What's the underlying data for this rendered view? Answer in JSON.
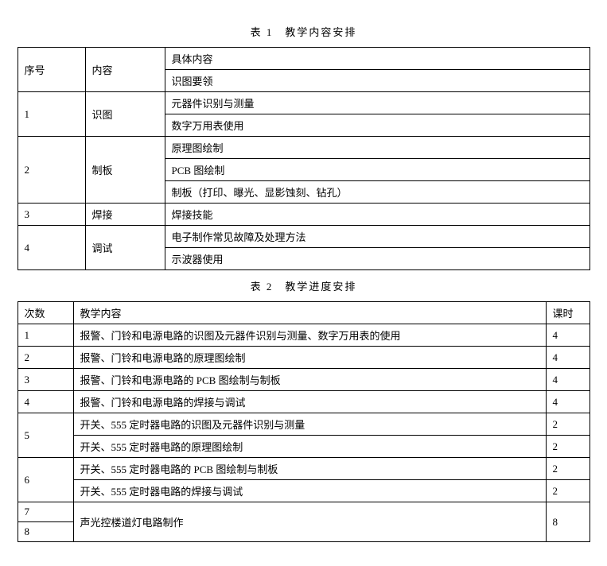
{
  "table1": {
    "caption": "表 1　教学内容安排",
    "headers": {
      "col1": "序号",
      "col2": "内容",
      "col3": "具体内容"
    },
    "rows": [
      {
        "seq": "1",
        "topic": "识图",
        "details": [
          "识图要领",
          "元器件识别与测量",
          "数字万用表使用"
        ]
      },
      {
        "seq": "2",
        "topic": "制板",
        "details": [
          "原理图绘制",
          "PCB 图绘制",
          "制板（打印、曝光、显影蚀刻、钻孔）"
        ]
      },
      {
        "seq": "3",
        "topic": "焊接",
        "details": [
          "焊接技能"
        ]
      },
      {
        "seq": "4",
        "topic": "调试",
        "details": [
          "电子制作常见故障及处理方法",
          "示波器使用"
        ]
      }
    ]
  },
  "table2": {
    "caption": "表 2　教学进度安排",
    "headers": {
      "col1": "次数",
      "col2": "教学内容",
      "col3": "课时"
    },
    "rows": [
      {
        "n": "1",
        "items": [
          {
            "content": "报警、门铃和电源电路的识图及元器件识别与测量、数字万用表的使用",
            "hours": "4"
          }
        ]
      },
      {
        "n": "2",
        "items": [
          {
            "content": "报警、门铃和电源电路的原理图绘制",
            "hours": "4"
          }
        ]
      },
      {
        "n": "3",
        "items": [
          {
            "content": "报警、门铃和电源电路的 PCB 图绘制与制板",
            "hours": "4"
          }
        ]
      },
      {
        "n": "4",
        "items": [
          {
            "content": "报警、门铃和电源电路的焊接与调试",
            "hours": "4"
          }
        ]
      },
      {
        "n": "5",
        "items": [
          {
            "content": "开关、555 定时器电路的识图及元器件识别与测量",
            "hours": "2"
          },
          {
            "content": "开关、555 定时器电路的原理图绘制",
            "hours": "2"
          }
        ]
      },
      {
        "n": "6",
        "items": [
          {
            "content": "开关、555 定时器电路的 PCB 图绘制与制板",
            "hours": "2"
          },
          {
            "content": "开关、555 定时器电路的焊接与调试",
            "hours": "2"
          }
        ]
      }
    ],
    "merged78": {
      "n1": "7",
      "n2": "8",
      "content": "声光控楼道灯电路制作",
      "hours": "8"
    }
  },
  "style": {
    "font_family": "SimSun",
    "font_size_pt": 10,
    "border_color": "#000000",
    "background_color": "#ffffff",
    "text_color": "#000000"
  }
}
